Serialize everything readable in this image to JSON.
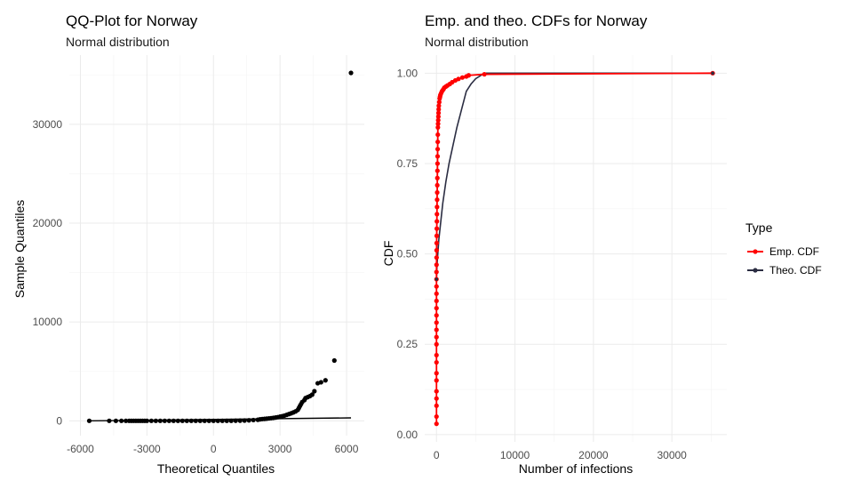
{
  "chart_data": [
    {
      "type": "scatter",
      "title": "QQ-Plot for Norway",
      "subtitle": "Normal distribution",
      "xlabel": "Theoretical Quantiles",
      "ylabel": "Sample Quantiles",
      "xlim": [
        -6500,
        6800
      ],
      "ylim": [
        -1500,
        37000
      ],
      "x_ticks": [
        -6000,
        -3000,
        0,
        3000,
        6000
      ],
      "x_tick_labels": [
        "-6000",
        "-3000",
        "0",
        "3000",
        "6000"
      ],
      "y_ticks": [
        0,
        10000,
        20000,
        30000
      ],
      "y_tick_labels": [
        "0",
        "10000",
        "20000",
        "30000"
      ],
      "grid": true,
      "point_color": "#000000",
      "line_color": "#000000",
      "reference_line": [
        [
          -5600,
          0
        ],
        [
          6200,
          300
        ]
      ],
      "points": [
        [
          -5600,
          0
        ],
        [
          -4700,
          0
        ],
        [
          -4400,
          0
        ],
        [
          -4150,
          0
        ],
        [
          -3950,
          0
        ],
        [
          -3800,
          0
        ],
        [
          -3700,
          0
        ],
        [
          -3600,
          0
        ],
        [
          -3500,
          0
        ],
        [
          -3400,
          0
        ],
        [
          -3300,
          0
        ],
        [
          -3200,
          0
        ],
        [
          -3100,
          0
        ],
        [
          -3000,
          0
        ],
        [
          -2800,
          0
        ],
        [
          -2600,
          0
        ],
        [
          -2400,
          0
        ],
        [
          -2200,
          0
        ],
        [
          -2000,
          0
        ],
        [
          -1800,
          0
        ],
        [
          -1600,
          0
        ],
        [
          -1400,
          0
        ],
        [
          -1200,
          0
        ],
        [
          -1000,
          0
        ],
        [
          -800,
          0
        ],
        [
          -600,
          0
        ],
        [
          -400,
          0
        ],
        [
          -200,
          0
        ],
        [
          0,
          0
        ],
        [
          200,
          0
        ],
        [
          400,
          0
        ],
        [
          600,
          0
        ],
        [
          800,
          0
        ],
        [
          1000,
          10
        ],
        [
          1200,
          20
        ],
        [
          1400,
          30
        ],
        [
          1600,
          50
        ],
        [
          1800,
          80
        ],
        [
          2000,
          110
        ],
        [
          2100,
          150
        ],
        [
          2200,
          180
        ],
        [
          2300,
          200
        ],
        [
          2400,
          220
        ],
        [
          2500,
          250
        ],
        [
          2600,
          270
        ],
        [
          2700,
          300
        ],
        [
          2800,
          330
        ],
        [
          2900,
          370
        ],
        [
          3000,
          420
        ],
        [
          3100,
          470
        ],
        [
          3200,
          530
        ],
        [
          3300,
          600
        ],
        [
          3400,
          680
        ],
        [
          3500,
          760
        ],
        [
          3600,
          850
        ],
        [
          3700,
          950
        ],
        [
          3800,
          1100
        ],
        [
          3850,
          1300
        ],
        [
          3900,
          1500
        ],
        [
          3950,
          1700
        ],
        [
          4000,
          1900
        ],
        [
          4100,
          2100
        ],
        [
          4150,
          2300
        ],
        [
          4250,
          2400
        ],
        [
          4350,
          2500
        ],
        [
          4450,
          2650
        ],
        [
          4550,
          3000
        ],
        [
          4700,
          3800
        ],
        [
          4850,
          3900
        ],
        [
          5050,
          4100
        ],
        [
          5450,
          6100
        ],
        [
          6200,
          35200
        ]
      ]
    },
    {
      "type": "line",
      "title": "Emp. and theo. CDFs for Norway",
      "subtitle": "Normal distribution",
      "xlabel": "Number of infections",
      "ylabel": "CDF",
      "xlim": [
        -1500,
        37000
      ],
      "ylim": [
        -0.02,
        1.05
      ],
      "x_ticks": [
        0,
        10000,
        20000,
        30000
      ],
      "x_tick_labels": [
        "0",
        "10000",
        "20000",
        "30000"
      ],
      "y_ticks": [
        0,
        0.25,
        0.5,
        0.75,
        1
      ],
      "y_tick_labels": [
        "0.00",
        "0.25",
        "0.50",
        "0.75",
        "1.00"
      ],
      "grid": true,
      "legend": {
        "title": "Type",
        "position": "right",
        "entries": [
          "Emp. CDF",
          "Theo. CDF"
        ]
      },
      "series": [
        {
          "name": "Emp. CDF",
          "color": "#ff0000",
          "x": [
            0,
            0,
            0,
            0,
            0,
            0,
            0,
            0,
            0,
            0,
            0,
            0,
            0,
            0,
            0,
            0,
            0,
            0,
            0,
            0,
            5,
            10,
            15,
            20,
            30,
            40,
            50,
            60,
            70,
            80,
            90,
            100,
            110,
            120,
            130,
            140,
            150,
            160,
            170,
            180,
            200,
            220,
            240,
            260,
            280,
            300,
            350,
            400,
            450,
            500,
            600,
            700,
            800,
            900,
            1000,
            1200,
            1400,
            1700,
            2000,
            2400,
            2800,
            3300,
            3800,
            4100,
            6100,
            35200
          ],
          "y": [
            0.03,
            0.05,
            0.08,
            0.1,
            0.12,
            0.15,
            0.17,
            0.2,
            0.22,
            0.25,
            0.27,
            0.29,
            0.31,
            0.33,
            0.35,
            0.37,
            0.39,
            0.41,
            0.43,
            0.45,
            0.47,
            0.49,
            0.51,
            0.53,
            0.55,
            0.57,
            0.59,
            0.61,
            0.63,
            0.65,
            0.67,
            0.69,
            0.71,
            0.73,
            0.75,
            0.77,
            0.79,
            0.81,
            0.83,
            0.85,
            0.86,
            0.87,
            0.88,
            0.89,
            0.9,
            0.91,
            0.92,
            0.93,
            0.935,
            0.94,
            0.945,
            0.95,
            0.953,
            0.956,
            0.96,
            0.963,
            0.966,
            0.97,
            0.975,
            0.98,
            0.984,
            0.988,
            0.991,
            0.994,
            0.997,
            1.0
          ]
        },
        {
          "name": "Theo. CDF",
          "color": "#2b2d42",
          "x": [
            0,
            50,
            100,
            200,
            300,
            500,
            800,
            1200,
            1600,
            2000,
            2600,
            3200,
            3800,
            4400,
            5000,
            6100,
            35200
          ],
          "y": [
            0.43,
            0.46,
            0.48,
            0.51,
            0.54,
            0.58,
            0.64,
            0.7,
            0.75,
            0.79,
            0.85,
            0.9,
            0.95,
            0.97,
            0.985,
            1.0,
            1.0
          ]
        }
      ]
    }
  ]
}
